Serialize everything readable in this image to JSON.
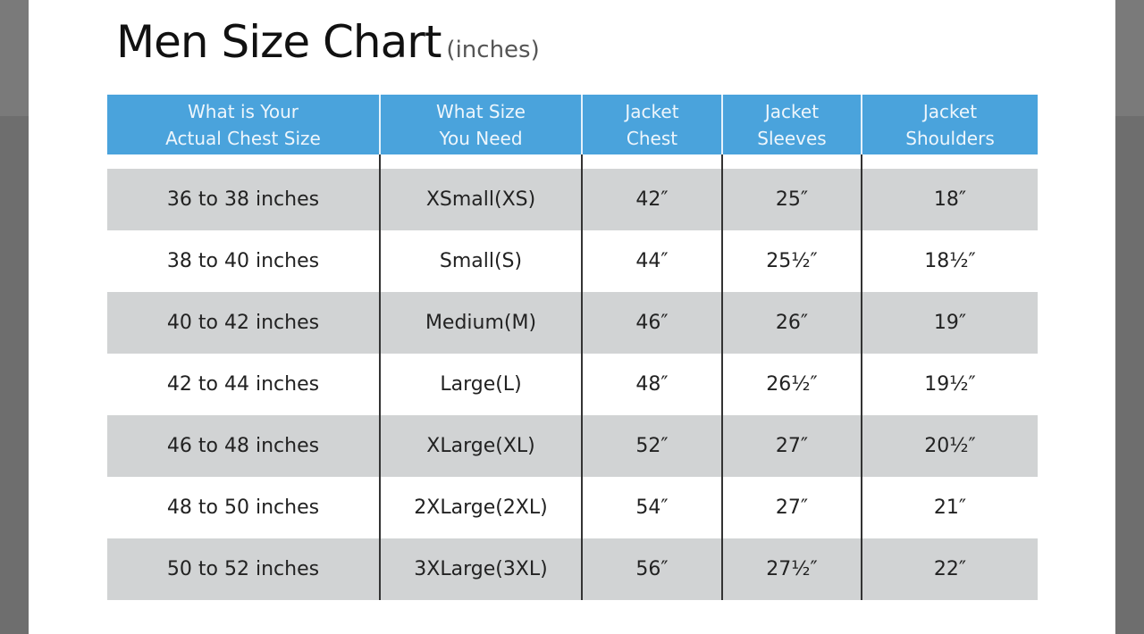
{
  "title": "Men Size Chart",
  "subtitle": "(inches)",
  "colors": {
    "header": "#4aa3dc",
    "stripe": "#d1d3d4",
    "backdrop": "#6e6e6e"
  },
  "headers": [
    [
      "What is Your",
      "Actual Chest Size"
    ],
    [
      "What Size",
      "You Need"
    ],
    [
      "Jacket",
      "Chest"
    ],
    [
      "Jacket",
      "Sleeves"
    ],
    [
      "Jacket",
      "Shoulders"
    ]
  ],
  "rows": [
    [
      "36 to 38 inches",
      "XSmall(XS)",
      "42″",
      "25″",
      "18″"
    ],
    [
      "38 to 40 inches",
      "Small(S)",
      "44″",
      "25½″",
      "18½″"
    ],
    [
      "40 to 42 inches",
      "Medium(M)",
      "46″",
      "26″",
      "19″"
    ],
    [
      "42 to 44 inches",
      "Large(L)",
      "48″",
      "26½″",
      "19½″"
    ],
    [
      "46 to 48 inches",
      "XLarge(XL)",
      "52″",
      "27″",
      "20½″"
    ],
    [
      "48 to 50 inches",
      "2XLarge(2XL)",
      "54″",
      "27″",
      "21″"
    ],
    [
      "50 to 52 inches",
      "3XLarge(3XL)",
      "56″",
      "27½″",
      "22″"
    ]
  ]
}
